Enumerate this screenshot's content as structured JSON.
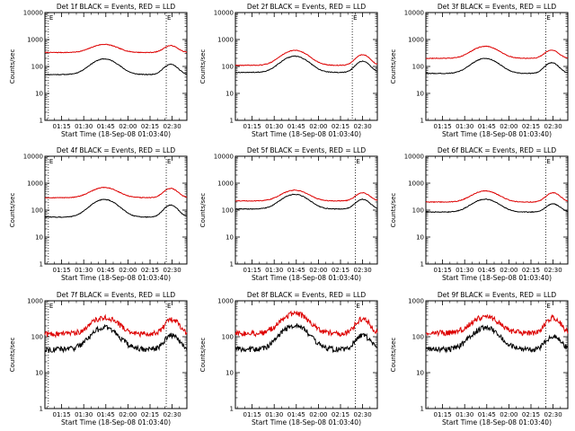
{
  "figure": {
    "panel_order": [
      "1f",
      "2f",
      "3f",
      "4f",
      "5f",
      "6f",
      "7f",
      "8f",
      "9f"
    ]
  },
  "chart_data": [
    {
      "type": "line",
      "title": "Det 1f BLACK = Events, RED = LLD",
      "xlabel": "Start Time (18-Sep-08 01:03:40)",
      "ylabel": "Counts/sec",
      "yscale": "log",
      "ylim": [
        1,
        10000
      ],
      "yticks": [
        "1",
        "10",
        "100",
        "1000",
        "10000"
      ],
      "xlim": [
        "01:03:40",
        "02:40:00"
      ],
      "xticks": [
        "01:15",
        "01:30",
        "01:45",
        "02:00",
        "02:15",
        "02:30"
      ],
      "markers": [
        {
          "time": "01:06",
          "label": "E"
        },
        {
          "time": "02:26",
          "label": "E"
        }
      ],
      "base": {
        "lld": 330,
        "events": 50
      },
      "peak1": {
        "time": "01:44",
        "lld_factor": 2.0,
        "events_factor": 3.8
      },
      "peak2": {
        "time": "02:29",
        "lld_factor": 1.8,
        "events_factor": 2.4
      },
      "series": [
        {
          "name": "Events",
          "color": "#000000"
        },
        {
          "name": "LLD",
          "color": "#dd0000"
        }
      ],
      "grid": false
    },
    {
      "type": "line",
      "title": "Det 2f BLACK = Events, RED = LLD",
      "xlabel": "Start Time (18-Sep-08 01:03:40)",
      "ylabel": "Counts/sec",
      "yscale": "log",
      "ylim": [
        1,
        10000
      ],
      "yticks": [
        "1",
        "10",
        "100",
        "1000",
        "10000"
      ],
      "xlim": [
        "01:03:40",
        "02:40:00"
      ],
      "xticks": [
        "01:15",
        "01:30",
        "01:45",
        "02:00",
        "02:15",
        "02:30"
      ],
      "markers": [
        {
          "time": "02:23",
          "label": "E"
        }
      ],
      "base": {
        "lld": 110,
        "events": 60
      },
      "peak1": {
        "time": "01:44",
        "lld_factor": 3.6,
        "events_factor": 4.0
      },
      "peak2": {
        "time": "02:30",
        "lld_factor": 2.5,
        "events_factor": 2.6
      },
      "series": [
        {
          "name": "Events",
          "color": "#000000"
        },
        {
          "name": "LLD",
          "color": "#dd0000"
        }
      ],
      "grid": false
    },
    {
      "type": "line",
      "title": "Det 3f BLACK = Events, RED = LLD",
      "xlabel": "Start Time (18-Sep-08 01:03:40)",
      "ylabel": "Counts/sec",
      "yscale": "log",
      "ylim": [
        1,
        10000
      ],
      "yticks": [
        "1",
        "10",
        "100",
        "1000",
        "10000"
      ],
      "xlim": [
        "01:03:40",
        "02:40:00"
      ],
      "xticks": [
        "01:15",
        "01:30",
        "01:45",
        "02:00",
        "02:15",
        "02:30"
      ],
      "markers": [
        {
          "time": "02:25",
          "label": "E"
        }
      ],
      "base": {
        "lld": 200,
        "events": 55
      },
      "peak1": {
        "time": "01:44",
        "lld_factor": 2.8,
        "events_factor": 3.6
      },
      "peak2": {
        "time": "02:29",
        "lld_factor": 2.0,
        "events_factor": 2.5
      },
      "series": [
        {
          "name": "Events",
          "color": "#000000"
        },
        {
          "name": "LLD",
          "color": "#dd0000"
        }
      ],
      "grid": false
    },
    {
      "type": "line",
      "title": "Det 4f BLACK = Events, RED = LLD",
      "xlabel": "Start Time (18-Sep-08 01:03:40)",
      "ylabel": "Counts/sec",
      "yscale": "log",
      "ylim": [
        1,
        10000
      ],
      "yticks": [
        "1",
        "10",
        "100",
        "1000",
        "10000"
      ],
      "xlim": [
        "01:03:40",
        "02:40:00"
      ],
      "xticks": [
        "01:15",
        "01:30",
        "01:45",
        "02:00",
        "02:15",
        "02:30"
      ],
      "markers": [
        {
          "time": "01:06",
          "label": "E"
        },
        {
          "time": "02:26",
          "label": "E"
        }
      ],
      "base": {
        "lld": 290,
        "events": 55
      },
      "peak1": {
        "time": "01:44",
        "lld_factor": 2.4,
        "events_factor": 4.5
      },
      "peak2": {
        "time": "02:29",
        "lld_factor": 2.2,
        "events_factor": 2.8
      },
      "series": [
        {
          "name": "Events",
          "color": "#000000"
        },
        {
          "name": "LLD",
          "color": "#dd0000"
        }
      ],
      "grid": false
    },
    {
      "type": "line",
      "title": "Det 5f BLACK = Events, RED = LLD",
      "xlabel": "Start Time (18-Sep-08 01:03:40)",
      "ylabel": "Counts/sec",
      "yscale": "log",
      "ylim": [
        1,
        10000
      ],
      "yticks": [
        "1",
        "10",
        "100",
        "1000",
        "10000"
      ],
      "xlim": [
        "01:03:40",
        "02:40:00"
      ],
      "xticks": [
        "01:15",
        "01:30",
        "01:45",
        "02:00",
        "02:15",
        "02:30"
      ],
      "markers": [
        {
          "time": "02:25",
          "label": "E"
        }
      ],
      "base": {
        "lld": 220,
        "events": 110
      },
      "peak1": {
        "time": "01:44",
        "lld_factor": 2.5,
        "events_factor": 3.5
      },
      "peak2": {
        "time": "02:30",
        "lld_factor": 2.0,
        "events_factor": 2.3
      },
      "series": [
        {
          "name": "Events",
          "color": "#000000"
        },
        {
          "name": "LLD",
          "color": "#dd0000"
        }
      ],
      "grid": false
    },
    {
      "type": "line",
      "title": "Det 6f BLACK = Events, RED = LLD",
      "xlabel": "Start Time (18-Sep-08 01:03:40)",
      "ylabel": "Counts/sec",
      "yscale": "log",
      "ylim": [
        1,
        10000
      ],
      "yticks": [
        "1",
        "10",
        "100",
        "1000",
        "10000"
      ],
      "xlim": [
        "01:03:40",
        "02:40:00"
      ],
      "xticks": [
        "01:15",
        "01:30",
        "01:45",
        "02:00",
        "02:15",
        "02:30"
      ],
      "markers": [
        {
          "time": "02:25",
          "label": "E"
        }
      ],
      "base": {
        "lld": 200,
        "events": 85
      },
      "peak1": {
        "time": "01:44",
        "lld_factor": 2.6,
        "events_factor": 3.0
      },
      "peak2": {
        "time": "02:30",
        "lld_factor": 2.2,
        "events_factor": 2.0
      },
      "series": [
        {
          "name": "Events",
          "color": "#000000"
        },
        {
          "name": "LLD",
          "color": "#dd0000"
        }
      ],
      "grid": false
    },
    {
      "type": "line",
      "title": "Det 7f BLACK = Events, RED = LLD",
      "xlabel": "Start Time (18-Sep-08 01:03:40)",
      "ylabel": "Counts/sec",
      "yscale": "log",
      "ylim": [
        1,
        1000
      ],
      "yticks": [
        "1",
        "10",
        "100",
        "1000"
      ],
      "xlim": [
        "01:03:40",
        "02:40:00"
      ],
      "xticks": [
        "01:15",
        "01:30",
        "01:45",
        "02:00",
        "02:15",
        "02:30"
      ],
      "markers": [
        {
          "time": "01:06",
          "label": "E"
        },
        {
          "time": "02:26",
          "label": "E"
        }
      ],
      "base": {
        "lld": 120,
        "events": 45
      },
      "peak1": {
        "time": "01:44",
        "lld_factor": 2.9,
        "events_factor": 4.0
      },
      "peak2": {
        "time": "02:30",
        "lld_factor": 2.5,
        "events_factor": 2.5
      },
      "series": [
        {
          "name": "Events",
          "color": "#000000"
        },
        {
          "name": "LLD",
          "color": "#dd0000"
        }
      ],
      "grid": false
    },
    {
      "type": "line",
      "title": "Det 8f BLACK = Events, RED = LLD",
      "xlabel": "Start Time (18-Sep-08 01:03:40)",
      "ylabel": "Counts/sec",
      "yscale": "log",
      "ylim": [
        1,
        1000
      ],
      "yticks": [
        "1",
        "10",
        "100",
        "1000"
      ],
      "xlim": [
        "01:03:40",
        "02:40:00"
      ],
      "xticks": [
        "01:15",
        "01:30",
        "01:45",
        "02:00",
        "02:15",
        "02:30"
      ],
      "markers": [
        {
          "time": "02:25",
          "label": "E"
        }
      ],
      "base": {
        "lld": 125,
        "events": 45
      },
      "peak1": {
        "time": "01:44",
        "lld_factor": 3.6,
        "events_factor": 4.6
      },
      "peak2": {
        "time": "02:30",
        "lld_factor": 2.5,
        "events_factor": 2.5
      },
      "series": [
        {
          "name": "Events",
          "color": "#000000"
        },
        {
          "name": "LLD",
          "color": "#dd0000"
        }
      ],
      "grid": false
    },
    {
      "type": "line",
      "title": "Det 9f BLACK = Events, RED = LLD",
      "xlabel": "Start Time (18-Sep-08 01:03:40)",
      "ylabel": "Counts/sec",
      "yscale": "log",
      "ylim": [
        1,
        1000
      ],
      "yticks": [
        "1",
        "10",
        "100",
        "1000"
      ],
      "xlim": [
        "01:03:40",
        "02:40:00"
      ],
      "xticks": [
        "01:15",
        "01:30",
        "01:45",
        "02:00",
        "02:15",
        "02:30"
      ],
      "markers": [
        {
          "time": "02:25",
          "label": "E"
        }
      ],
      "base": {
        "lld": 130,
        "events": 45
      },
      "peak1": {
        "time": "01:44",
        "lld_factor": 2.8,
        "events_factor": 4.0
      },
      "peak2": {
        "time": "02:30",
        "lld_factor": 2.6,
        "events_factor": 2.3
      },
      "series": [
        {
          "name": "Events",
          "color": "#000000"
        },
        {
          "name": "LLD",
          "color": "#dd0000"
        }
      ],
      "grid": false
    }
  ]
}
